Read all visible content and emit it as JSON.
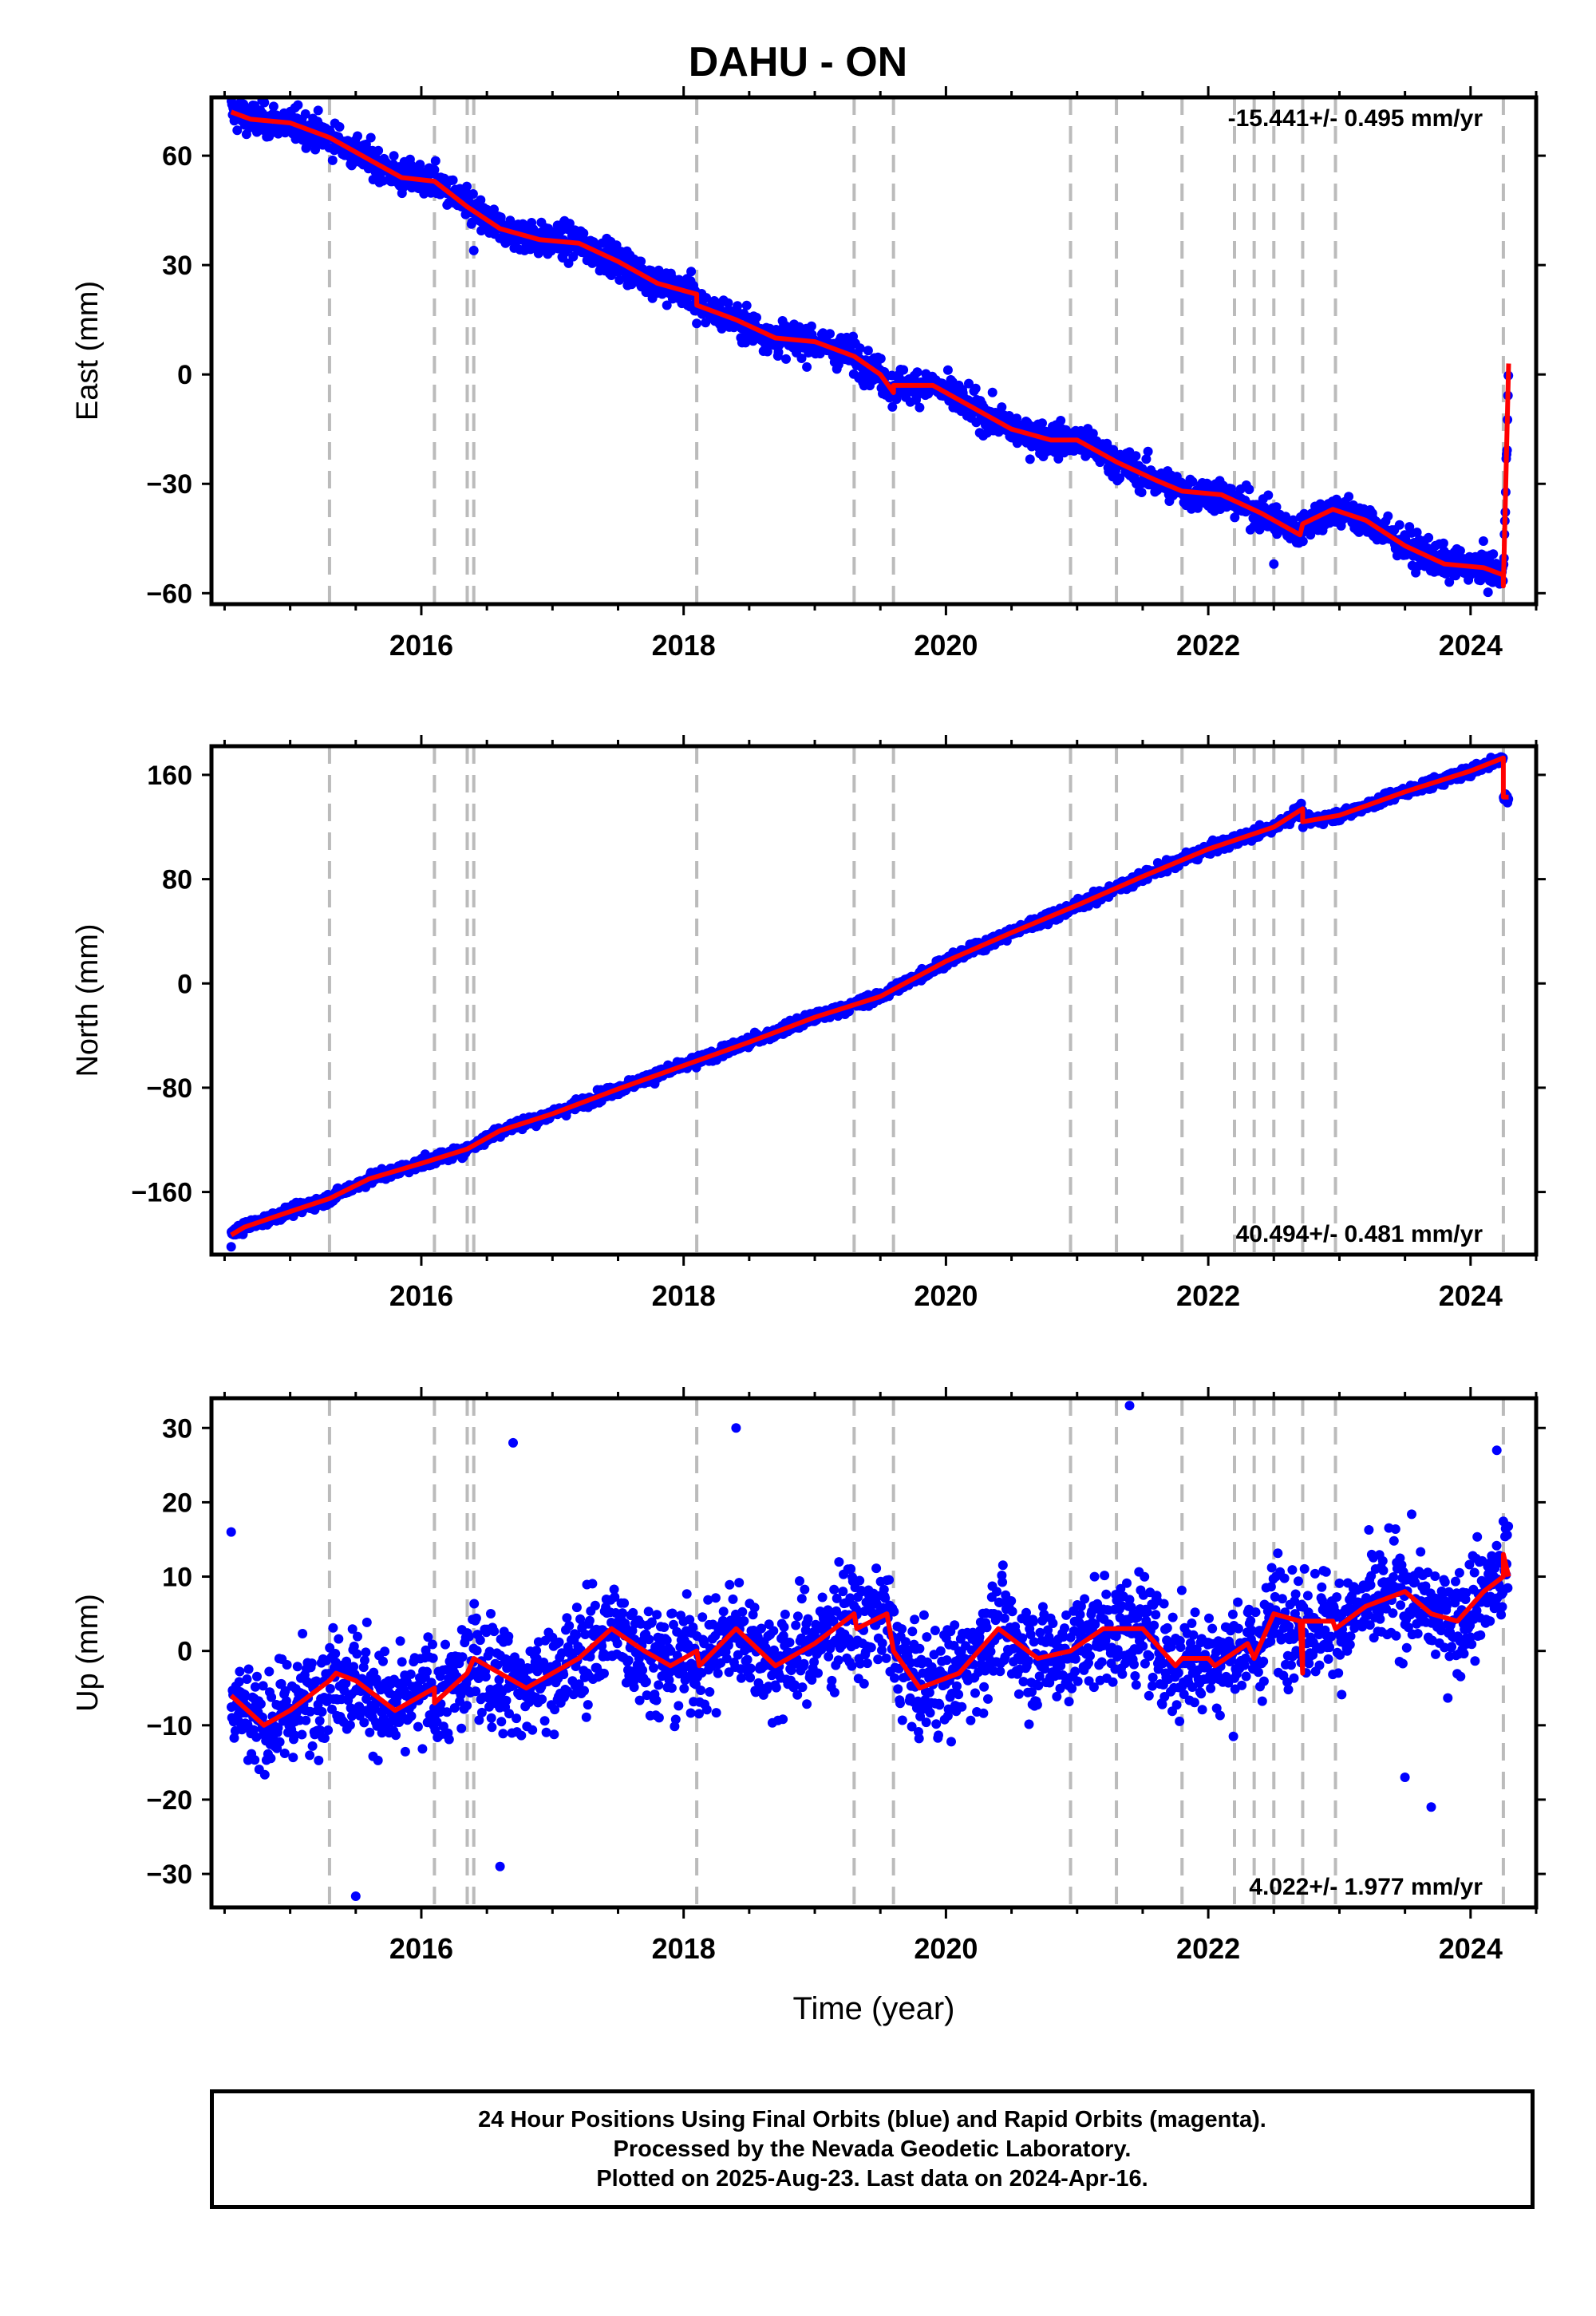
{
  "title": "DAHU - ON",
  "xlabel": "Time (year)",
  "footer": {
    "line1": "24 Hour Positions Using Final Orbits (blue) and Rapid Orbits (magenta).",
    "line2": "Processed by the Nevada Geodetic Laboratory.",
    "line3": "Plotted on 2025-Aug-23. Last data on 2024-Apr-16."
  },
  "colors": {
    "final_points": "#0000ff",
    "model": "#ff0000",
    "steps": "#bbbbbb"
  },
  "chart_data": [
    {
      "type": "scatter",
      "component": "East",
      "ylabel": "East (mm)",
      "rate_label": "-15.441+/- 0.495 mm/yr",
      "rate_position": "top-right",
      "xlim": [
        2014.4,
        2024.5
      ],
      "ylim": [
        -63,
        76
      ],
      "yticks": [
        -60,
        -30,
        0,
        30,
        60
      ],
      "yticklabels": [
        "−60",
        "−30",
        "0",
        "30",
        "60"
      ],
      "xticks": [
        2016,
        2018,
        2020,
        2022,
        2024
      ],
      "xticklabels": [
        "2016",
        "2018",
        "2020",
        "2022",
        "2024"
      ],
      "scatter": 3.2,
      "model_x": [
        2014.55,
        2014.7,
        2015.0,
        2015.3,
        2015.6,
        2015.85,
        2016.1,
        2016.35,
        2016.6,
        2016.9,
        2017.2,
        2017.5,
        2017.8,
        2018.1,
        2018.1,
        2018.4,
        2018.7,
        2019.0,
        2019.3,
        2019.5,
        2019.6,
        2019.6,
        2019.9,
        2020.2,
        2020.5,
        2020.8,
        2021.0,
        2021.3,
        2021.6,
        2021.8,
        2022.1,
        2022.4,
        2022.7,
        2022.72,
        2022.95,
        2023.2,
        2023.5,
        2023.8,
        2024.1,
        2024.25,
        2024.25,
        2024.29
      ],
      "model_y": [
        72,
        70,
        69,
        65,
        59,
        54,
        53,
        46,
        40,
        37,
        36,
        31,
        25,
        22,
        19,
        15,
        10,
        9,
        5,
        0,
        -5,
        -3,
        -3,
        -9,
        -15,
        -18,
        -18,
        -24,
        -29,
        -32,
        -33,
        -38,
        -44,
        -41,
        -37,
        -40,
        -47,
        -52,
        -53,
        -55,
        -58,
        3
      ],
      "point_segments": [
        {
          "x0": 2014.55,
          "x1": 2024.25,
          "n": 2200
        },
        {
          "x0": 2024.25,
          "x1": 2024.29,
          "n": 12
        }
      ],
      "outliers": [
        [
          2016.4,
          34
        ],
        [
          2018.1,
          14
        ],
        [
          2022.5,
          -52
        ]
      ]
    },
    {
      "type": "scatter",
      "component": "North",
      "ylabel": "North (mm)",
      "rate_label": "40.494+/- 0.481 mm/yr",
      "rate_position": "bottom-right",
      "xlim": [
        2014.4,
        2024.5
      ],
      "ylim": [
        -208,
        182
      ],
      "yticks": [
        -160,
        -80,
        0,
        80,
        160
      ],
      "yticklabels": [
        "−160",
        "−80",
        "0",
        "80",
        "160"
      ],
      "xticks": [
        2016,
        2018,
        2020,
        2022,
        2024
      ],
      "xticklabels": [
        "2016",
        "2018",
        "2020",
        "2022",
        "2024"
      ],
      "scatter": 3.0,
      "model_x": [
        2014.55,
        2014.65,
        2015.0,
        2015.3,
        2015.6,
        2016.0,
        2016.35,
        2016.6,
        2017.0,
        2017.5,
        2018.0,
        2018.5,
        2019.0,
        2019.5,
        2020.0,
        2020.5,
        2021.0,
        2021.5,
        2022.0,
        2022.5,
        2022.72,
        2022.72,
        2023.0,
        2023.5,
        2024.0,
        2024.25,
        2024.25,
        2024.29
      ],
      "model_y": [
        -193,
        -187,
        -175,
        -165,
        -150,
        -138,
        -127,
        -113,
        -100,
        -81,
        -63,
        -45,
        -26,
        -10,
        17,
        39,
        60,
        82,
        103,
        120,
        134,
        124,
        129,
        147,
        163,
        173,
        143,
        143
      ],
      "point_segments": [
        {
          "x0": 2014.55,
          "x1": 2024.25,
          "n": 2200
        },
        {
          "x0": 2024.25,
          "x1": 2024.29,
          "n": 12
        }
      ],
      "outliers": [
        [
          2014.55,
          -202
        ]
      ]
    },
    {
      "type": "scatter",
      "component": "Up",
      "ylabel": "Up (mm)",
      "rate_label": "4.022+/- 1.977 mm/yr",
      "rate_position": "bottom-right",
      "xlim": [
        2014.4,
        2024.5
      ],
      "ylim": [
        -34.5,
        34
      ],
      "yticks": [
        -30,
        -20,
        -10,
        0,
        10,
        20,
        30
      ],
      "yticklabels": [
        "−30",
        "−20",
        "−10",
        "0",
        "10",
        "20",
        "30"
      ],
      "xticks": [
        2016,
        2018,
        2020,
        2022,
        2024
      ],
      "xticklabels": [
        "2016",
        "2018",
        "2020",
        "2022",
        "2024"
      ],
      "scatter": 5.0,
      "model_x": [
        2014.55,
        2014.8,
        2015.0,
        2015.3,
        2015.35,
        2015.5,
        2015.8,
        2016.1,
        2016.1,
        2016.35,
        2016.4,
        2016.5,
        2016.8,
        2017.2,
        2017.45,
        2017.7,
        2017.9,
        2018.1,
        2018.12,
        2018.4,
        2018.7,
        2019.0,
        2019.3,
        2019.32,
        2019.55,
        2019.6,
        2019.8,
        2020.1,
        2020.4,
        2020.7,
        2020.95,
        2021.2,
        2021.5,
        2021.75,
        2021.8,
        2022.0,
        2022.05,
        2022.3,
        2022.35,
        2022.5,
        2022.7,
        2022.72,
        2022.72,
        2022.95,
        2022.97,
        2023.2,
        2023.5,
        2023.7,
        2023.9,
        2024.1,
        2024.25,
        2024.25,
        2024.29
      ],
      "model_y": [
        -6,
        -10,
        -8,
        -4,
        -3,
        -4,
        -8,
        -5,
        -7,
        -3,
        -1,
        -2,
        -5,
        -1,
        3,
        0,
        -2,
        0,
        -2,
        3,
        -2,
        1,
        5,
        3,
        5,
        0,
        -5,
        -3,
        3,
        -1,
        0,
        3,
        3,
        -2,
        -1,
        -1,
        -2,
        1,
        -1,
        5,
        4,
        -3,
        4,
        4,
        3,
        6,
        8,
        5,
        4,
        8,
        10,
        13,
        10
      ],
      "point_segments": [
        {
          "x0": 2014.55,
          "x1": 2024.29,
          "n": 2300
        }
      ],
      "outliers": [
        [
          2014.55,
          16
        ],
        [
          2015.5,
          -33
        ],
        [
          2016.7,
          28
        ],
        [
          2016.6,
          -29
        ],
        [
          2018.4,
          30
        ],
        [
          2021.4,
          33
        ],
        [
          2023.7,
          -21
        ],
        [
          2023.5,
          -17
        ],
        [
          2024.2,
          27
        ]
      ]
    }
  ],
  "step_epochs": [
    2015.3,
    2016.1,
    2016.35,
    2016.4,
    2018.1,
    2019.3,
    2019.6,
    2020.95,
    2021.3,
    2021.8,
    2022.2,
    2022.35,
    2022.5,
    2022.72,
    2022.97,
    2024.25
  ]
}
